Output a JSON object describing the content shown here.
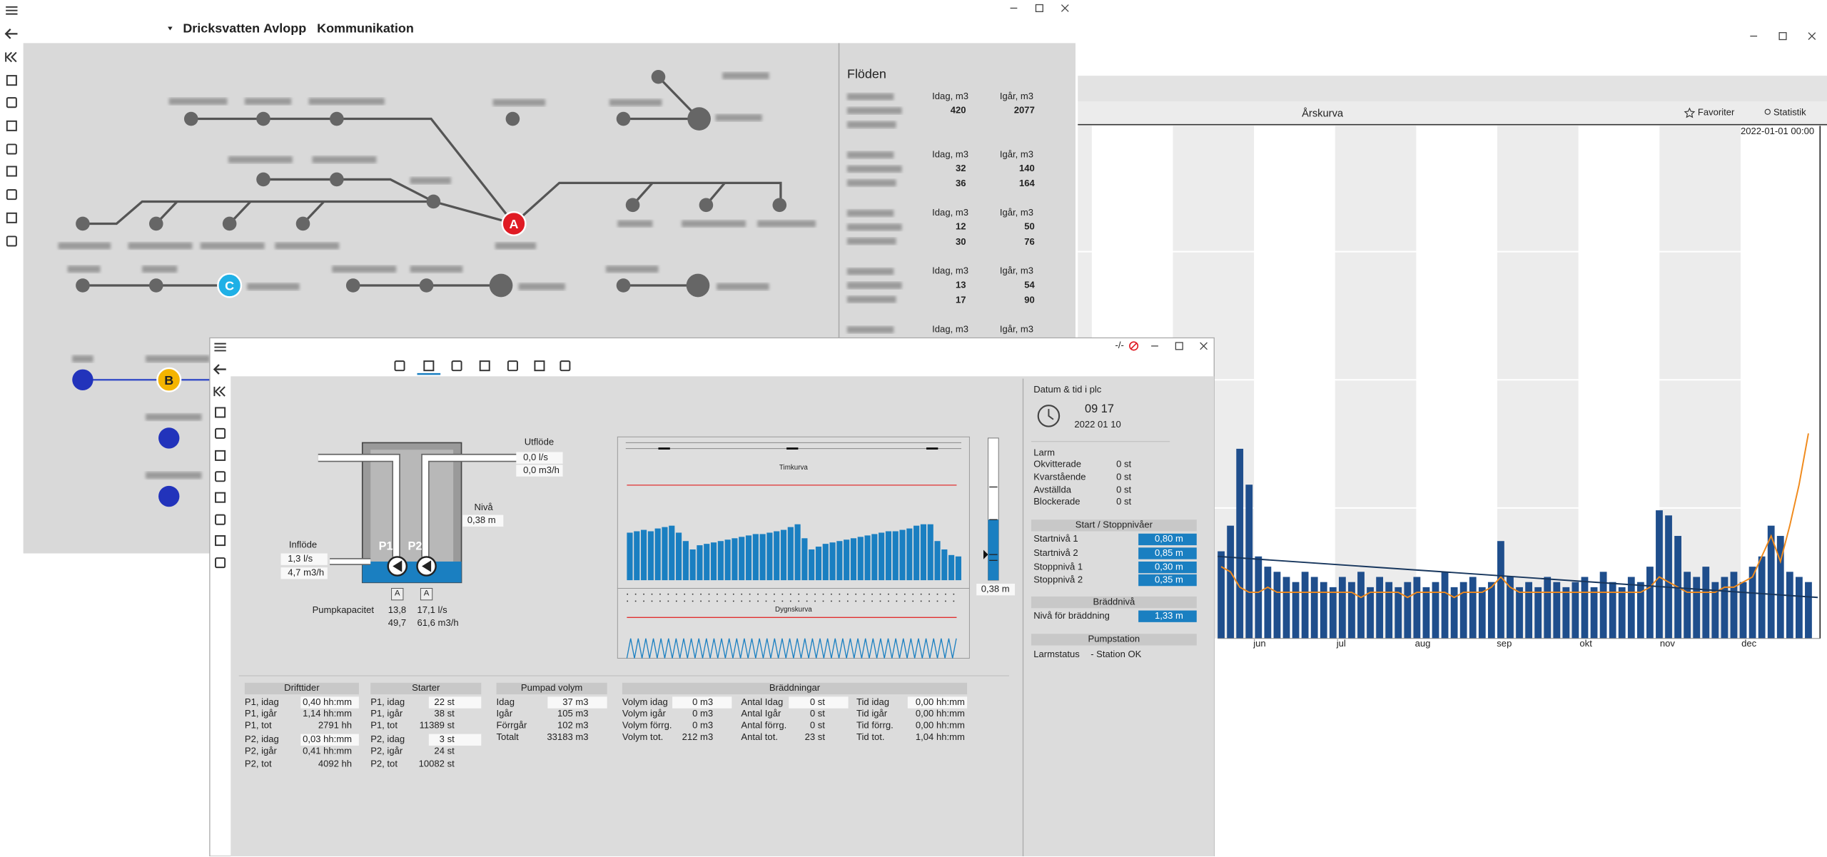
{
  "main_window": {
    "menu": [
      "Dricksvatten",
      "Avlopp",
      "Kommunikation"
    ],
    "markers": [
      "A",
      "B",
      "C"
    ],
    "flows": {
      "title": "Flöden",
      "groups": [
        {
          "headers": [
            "Idag, m3",
            "Igår, m3"
          ],
          "rows": [
            [
              "420",
              "2077"
            ]
          ]
        },
        {
          "headers": [
            "Idag, m3",
            "Igår, m3"
          ],
          "rows": [
            [
              "32",
              "140"
            ],
            [
              "36",
              "164"
            ]
          ]
        },
        {
          "headers": [
            "Idag, m3",
            "Igår, m3"
          ],
          "rows": [
            [
              "12",
              "50"
            ],
            [
              "30",
              "76"
            ]
          ]
        },
        {
          "headers": [
            "Idag, m3",
            "Igår, m3"
          ],
          "rows": [
            [
              "13",
              "54"
            ],
            [
              "17",
              "90"
            ]
          ]
        },
        {
          "headers": [
            "Idag, m3",
            "Igår, m3"
          ],
          "rows": []
        }
      ]
    }
  },
  "trend_window": {
    "title": "Årskurva",
    "favorites": "Favoriter",
    "statistics": "Statistik",
    "timestamp": "2022-01-01 00:00",
    "months": [
      "jun",
      "jul",
      "aug",
      "sep",
      "okt",
      "nov",
      "dec"
    ],
    "ylim": [
      0,
      100
    ],
    "bars": [
      17,
      22,
      37,
      30,
      16,
      14,
      13,
      12,
      11,
      13,
      12,
      11,
      10,
      12,
      11,
      13,
      10,
      12,
      11,
      10,
      11,
      12,
      10,
      11,
      13,
      10,
      11,
      12,
      10,
      11,
      19,
      12,
      10,
      11,
      10,
      12,
      11,
      10,
      11,
      12,
      10,
      13,
      11,
      10,
      12,
      11,
      14,
      25,
      24,
      20,
      13,
      12,
      14,
      11,
      12,
      13,
      11,
      14,
      16,
      22,
      20,
      13,
      12,
      11
    ],
    "line": [
      14,
      13,
      10,
      9,
      9,
      10,
      9,
      9,
      9,
      9,
      9,
      9,
      9,
      9,
      9,
      8,
      9,
      9,
      9,
      9,
      8,
      9,
      9,
      9,
      9,
      8,
      9,
      9,
      9,
      10,
      12,
      10,
      9,
      9,
      9,
      9,
      9,
      9,
      9,
      9,
      9,
      9,
      9,
      9,
      9,
      9,
      10,
      12,
      11,
      10,
      9,
      9,
      9,
      9,
      10,
      10,
      11,
      12,
      16,
      20,
      15,
      22,
      30,
      40
    ],
    "trend": [
      16,
      8
    ]
  },
  "station_window": {
    "status": "-/-",
    "outflow": {
      "label": "Utflöde",
      "values": [
        "0,0 l/s",
        "0,0 m3/h"
      ]
    },
    "level": {
      "label": "Nivå",
      "value": "0,38 m"
    },
    "inflow": {
      "label": "Inflöde",
      "values": [
        "1,3 l/s",
        "4,7 m3/h"
      ]
    },
    "pumps": [
      "P1",
      "P2"
    ],
    "pump_buttons": [
      "A",
      "A"
    ],
    "capacity": {
      "label": "Pumpkapacitet",
      "rows": [
        [
          "13,8",
          "17,1 l/s"
        ],
        [
          "49,7",
          "61,6 m3/h"
        ]
      ]
    },
    "hourly": {
      "title": "Timkurva",
      "ylim": [
        0,
        100
      ],
      "limit": 68,
      "values": [
        34,
        35,
        36,
        35,
        37,
        38,
        39,
        34,
        28,
        22,
        25,
        26,
        27,
        28,
        29,
        30,
        31,
        32,
        33,
        33,
        34,
        35,
        36,
        38,
        40,
        30,
        22,
        24,
        26,
        27,
        28,
        29,
        30,
        31,
        32,
        33,
        34,
        35,
        35,
        36,
        37,
        39,
        40,
        40,
        28,
        22,
        18,
        17
      ]
    },
    "daily": {
      "title": "Dygnskurva"
    },
    "gauge_value": "0,38 m",
    "tables": [
      {
        "title": "Drifttider",
        "rows": [
          [
            "P1, idag",
            "0,40 hh:mm"
          ],
          [
            "P1, igår",
            "1,14 hh:mm"
          ],
          [
            "P1, tot",
            "2791 hh"
          ],
          [
            "P2, idag",
            "0,03 hh:mm"
          ],
          [
            "P2, igår",
            "0,41 hh:mm"
          ],
          [
            "P2, tot",
            "4092 hh"
          ]
        ]
      },
      {
        "title": "Starter",
        "rows": [
          [
            "P1, idag",
            "22 st"
          ],
          [
            "P1, igår",
            "38 st"
          ],
          [
            "P1, tot",
            "11389 st"
          ],
          [
            "P2, idag",
            "3 st"
          ],
          [
            "P2, igår",
            "24 st"
          ],
          [
            "P2, tot",
            "10082 st"
          ]
        ]
      },
      {
        "title": "Pumpad volym",
        "rows": [
          [
            "Idag",
            "37 m3"
          ],
          [
            "Igår",
            "105 m3"
          ],
          [
            "Förrgår",
            "102 m3"
          ],
          [
            "Totalt",
            "33183 m3"
          ]
        ]
      }
    ],
    "overflows": {
      "title": "Bräddningar",
      "rows": [
        [
          "Volym idag",
          "0 m3",
          "Antal Idag",
          "0 st",
          "Tid idag",
          "0,00 hh:mm"
        ],
        [
          "Volym igår",
          "0 m3",
          "Antal Igår",
          "0 st",
          "Tid igår",
          "0,00 hh:mm"
        ],
        [
          "Volym förrg.",
          "0 m3",
          "Antal förrg.",
          "0 st",
          "Tid förrg.",
          "0,00 hh:mm"
        ],
        [
          "Volym tot.",
          "212 m3",
          "Antal tot.",
          "23 st",
          "Tid tot.",
          "1,04 hh:mm"
        ]
      ]
    },
    "plc": {
      "title": "Datum & tid i plc",
      "time": "09 17",
      "date": "2022 01 10"
    },
    "alarms": {
      "title": "Larm",
      "rows": [
        [
          "Okvitterade",
          "0 st"
        ],
        [
          "Kvarstående",
          "0 st"
        ],
        [
          "Avställda",
          "0 st"
        ],
        [
          "Blockerade",
          "0 st"
        ]
      ]
    },
    "levels": {
      "title": "Start / Stoppnivåer",
      "rows": [
        [
          "Startnivå 1",
          "0,80 m"
        ],
        [
          "Startnivå 2",
          "0,85 m"
        ],
        [
          "Stoppnivå 1",
          "0,30 m"
        ],
        [
          "Stoppnivå 2",
          "0,35 m"
        ]
      ]
    },
    "overflow_level": {
      "title": "Bräddnivå",
      "rows": [
        [
          "Nivå för bräddning",
          "1,33 m"
        ]
      ]
    },
    "pumpstation": {
      "title": "Pumpstation",
      "rows": [
        [
          "Larmstatus",
          "- Station OK"
        ]
      ]
    }
  }
}
